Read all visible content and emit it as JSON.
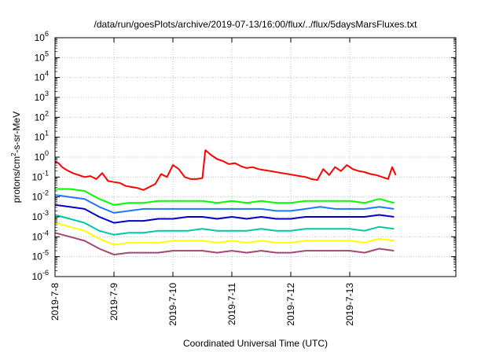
{
  "chart_data": {
    "type": "line",
    "title": "/data/run/goesPlots/archive/2019-07-13/16:00/flux/../flux/5daysMarsFluxes.txt",
    "xlabel": "Coordinated Universal Time (UTC)",
    "ylabel": "protons/cm²-s-sr-MeV",
    "ylabel_parts": {
      "pre": "protons/cm",
      "sup": "2",
      "post": "-s-sr-MeV"
    },
    "xlim": [
      0,
      6.8
    ],
    "ylim": [
      -6,
      6
    ],
    "yscale": "log",
    "grid": true,
    "x_ticks": [
      {
        "x": 0,
        "label": "2019-7-8"
      },
      {
        "x": 1,
        "label": "2019-7-9"
      },
      {
        "x": 2,
        "label": "2019-7-10"
      },
      {
        "x": 3,
        "label": "2019-7-11"
      },
      {
        "x": 4,
        "label": "2019-7-12"
      },
      {
        "x": 5,
        "label": "2019-7-13"
      }
    ],
    "y_ticks": [
      {
        "exp": -6,
        "base": "10",
        "sup": "-6"
      },
      {
        "exp": -5,
        "base": "10",
        "sup": "-5"
      },
      {
        "exp": -4,
        "base": "10",
        "sup": "-4"
      },
      {
        "exp": -3,
        "base": "10",
        "sup": "-3"
      },
      {
        "exp": -2,
        "base": "10",
        "sup": "-2"
      },
      {
        "exp": -1,
        "base": "10",
        "sup": "-1"
      },
      {
        "exp": 0,
        "base": "10",
        "sup": "0"
      },
      {
        "exp": 1,
        "base": "10",
        "sup": "1"
      },
      {
        "exp": 2,
        "base": "10",
        "sup": "2"
      },
      {
        "exp": 3,
        "base": "10",
        "sup": "3"
      },
      {
        "exp": 4,
        "base": "10",
        "sup": "4"
      },
      {
        "exp": 5,
        "base": "10",
        "sup": "5"
      },
      {
        "exp": 6,
        "base": "10",
        "sup": "6"
      }
    ],
    "series": [
      {
        "color": "#ff0000",
        "x": [
          0,
          0.06,
          0.12,
          0.2,
          0.3,
          0.4,
          0.5,
          0.6,
          0.7,
          0.8,
          0.9,
          1.0,
          1.1,
          1.2,
          1.3,
          1.4,
          1.5,
          1.6,
          1.7,
          1.8,
          1.9,
          2.0,
          2.1,
          2.2,
          2.3,
          2.4,
          2.5,
          2.55,
          2.65,
          2.75,
          2.85,
          2.95,
          3.05,
          3.15,
          3.25,
          3.35,
          3.45,
          3.55,
          3.65,
          3.75,
          3.85,
          3.95,
          4.05,
          4.15,
          4.25,
          4.35,
          4.45,
          4.55,
          4.65,
          4.75,
          4.85,
          4.95,
          5.05,
          5.15,
          5.25,
          5.35,
          5.45,
          5.55,
          5.65,
          5.72,
          5.78
        ],
        "y": [
          -0.25,
          -0.3,
          -0.5,
          -0.65,
          -0.8,
          -0.9,
          -1.0,
          -0.95,
          -1.1,
          -0.8,
          -1.2,
          -1.25,
          -1.3,
          -1.45,
          -1.5,
          -1.55,
          -1.65,
          -1.5,
          -1.35,
          -0.85,
          -1.0,
          -0.4,
          -0.6,
          -1.0,
          -1.1,
          -1.1,
          -1.05,
          0.35,
          0.1,
          -0.1,
          -0.2,
          -0.35,
          -0.3,
          -0.45,
          -0.55,
          -0.5,
          -0.6,
          -0.65,
          -0.7,
          -0.75,
          -0.8,
          -0.85,
          -0.9,
          -0.95,
          -1.0,
          -1.1,
          -1.15,
          -0.6,
          -0.9,
          -0.5,
          -0.7,
          -0.4,
          -0.6,
          -0.7,
          -0.75,
          -0.85,
          -0.9,
          -1.0,
          -1.1,
          -0.5,
          -0.9
        ]
      },
      {
        "color": "#00ff00",
        "x": [
          0,
          0.25,
          0.5,
          0.75,
          1.0,
          1.25,
          1.5,
          1.75,
          2.0,
          2.25,
          2.5,
          2.75,
          3.0,
          3.25,
          3.5,
          3.75,
          4.0,
          4.25,
          4.5,
          4.75,
          5.0,
          5.25,
          5.5,
          5.75
        ],
        "y": [
          -1.6,
          -1.6,
          -1.7,
          -2.1,
          -2.4,
          -2.3,
          -2.3,
          -2.2,
          -2.2,
          -2.2,
          -2.2,
          -2.3,
          -2.2,
          -2.3,
          -2.2,
          -2.3,
          -2.3,
          -2.2,
          -2.2,
          -2.2,
          -2.2,
          -2.3,
          -2.1,
          -2.3
        ]
      },
      {
        "color": "#1e78ff",
        "x": [
          0,
          0.25,
          0.5,
          0.75,
          1.0,
          1.25,
          1.5,
          1.75,
          2.0,
          2.25,
          2.5,
          2.75,
          3.0,
          3.25,
          3.5,
          3.75,
          4.0,
          4.25,
          4.5,
          4.75,
          5.0,
          5.25,
          5.5,
          5.75
        ],
        "y": [
          -1.9,
          -2.0,
          -2.1,
          -2.5,
          -2.8,
          -2.7,
          -2.6,
          -2.6,
          -2.6,
          -2.6,
          -2.6,
          -2.6,
          -2.6,
          -2.6,
          -2.6,
          -2.7,
          -2.7,
          -2.6,
          -2.5,
          -2.6,
          -2.6,
          -2.6,
          -2.5,
          -2.6
        ]
      },
      {
        "color": "#0000cc",
        "x": [
          0,
          0.25,
          0.5,
          0.75,
          1.0,
          1.25,
          1.5,
          1.75,
          2.0,
          2.25,
          2.5,
          2.75,
          3.0,
          3.25,
          3.5,
          3.75,
          4.0,
          4.25,
          4.5,
          4.75,
          5.0,
          5.25,
          5.5,
          5.75
        ],
        "y": [
          -2.4,
          -2.5,
          -2.6,
          -3.0,
          -3.3,
          -3.2,
          -3.2,
          -3.1,
          -3.1,
          -3.0,
          -3.0,
          -3.1,
          -3.0,
          -3.1,
          -3.0,
          -3.1,
          -3.1,
          -3.0,
          -3.0,
          -3.0,
          -3.0,
          -3.0,
          -2.9,
          -3.0
        ]
      },
      {
        "color": "#00c8a0",
        "x": [
          0,
          0.25,
          0.5,
          0.75,
          1.0,
          1.25,
          1.5,
          1.75,
          2.0,
          2.25,
          2.5,
          2.75,
          3.0,
          3.25,
          3.5,
          3.75,
          4.0,
          4.25,
          4.5,
          4.75,
          5.0,
          5.25,
          5.5,
          5.75
        ],
        "y": [
          -2.9,
          -3.1,
          -3.3,
          -3.7,
          -3.9,
          -3.8,
          -3.8,
          -3.7,
          -3.7,
          -3.7,
          -3.6,
          -3.7,
          -3.7,
          -3.7,
          -3.6,
          -3.7,
          -3.7,
          -3.6,
          -3.6,
          -3.6,
          -3.6,
          -3.7,
          -3.5,
          -3.6
        ]
      },
      {
        "color": "#ffff00",
        "x": [
          0,
          0.25,
          0.5,
          0.75,
          1.0,
          1.25,
          1.5,
          1.75,
          2.0,
          2.25,
          2.5,
          2.75,
          3.0,
          3.25,
          3.5,
          3.75,
          4.0,
          4.25,
          4.5,
          4.75,
          5.0,
          5.25,
          5.5,
          5.75
        ],
        "y": [
          -3.3,
          -3.5,
          -3.7,
          -4.1,
          -4.4,
          -4.3,
          -4.3,
          -4.3,
          -4.2,
          -4.2,
          -4.2,
          -4.3,
          -4.2,
          -4.3,
          -4.2,
          -4.3,
          -4.3,
          -4.2,
          -4.2,
          -4.2,
          -4.2,
          -4.3,
          -4.1,
          -4.2
        ]
      },
      {
        "color": "#a04878",
        "x": [
          0,
          0.25,
          0.5,
          0.75,
          1.0,
          1.25,
          1.5,
          1.75,
          2.0,
          2.25,
          2.5,
          2.75,
          3.0,
          3.25,
          3.5,
          3.75,
          4.0,
          4.25,
          4.5,
          4.75,
          5.0,
          5.25,
          5.5,
          5.75
        ],
        "y": [
          -3.8,
          -4.0,
          -4.2,
          -4.6,
          -4.9,
          -4.8,
          -4.8,
          -4.8,
          -4.7,
          -4.7,
          -4.7,
          -4.8,
          -4.7,
          -4.8,
          -4.7,
          -4.8,
          -4.8,
          -4.7,
          -4.7,
          -4.7,
          -4.7,
          -4.8,
          -4.6,
          -4.7
        ]
      }
    ]
  }
}
